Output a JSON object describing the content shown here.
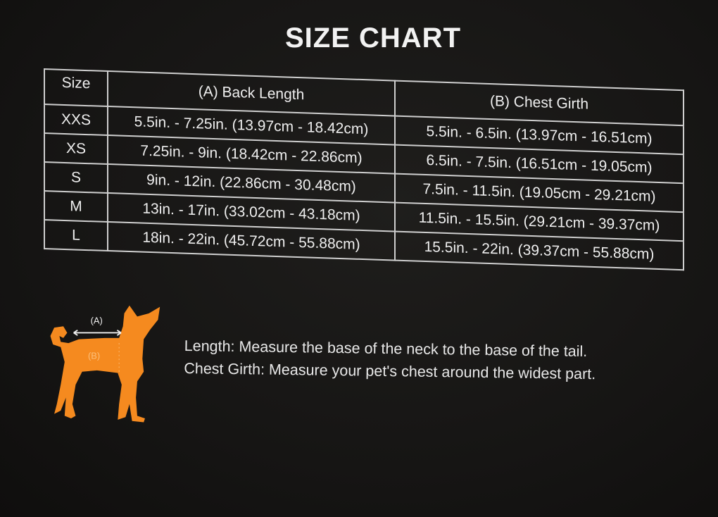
{
  "title": "SIZE CHART",
  "table": {
    "headers": [
      "Size",
      "(A) Back Length",
      "(B) Chest Girth"
    ],
    "rows": [
      [
        "XXS",
        "5.5in. - 7.25in. (13.97cm - 18.42cm)",
        "5.5in. - 6.5in. (13.97cm - 16.51cm)"
      ],
      [
        "XS",
        "7.25in. - 9in. (18.42cm - 22.86cm)",
        "6.5in. - 7.5in. (16.51cm - 19.05cm)"
      ],
      [
        "S",
        "9in. - 12in. (22.86cm - 30.48cm)",
        "7.5in. - 11.5in. (19.05cm - 29.21cm)"
      ],
      [
        "M",
        "13in. - 17in. (33.02cm - 43.18cm)",
        "11.5in. - 15.5in. (29.21cm - 39.37cm)"
      ],
      [
        "L",
        "18in. - 22in. (45.72cm - 55.88cm)",
        "15.5in. - 22in. (39.37cm - 55.88cm)"
      ]
    ]
  },
  "diagram": {
    "label_a": "(A)",
    "label_b": "(B)",
    "icon": "dog-silhouette-icon",
    "color": "#f58a1f"
  },
  "notes": [
    "Length: Measure the base of the neck to the base of the tail.",
    "Chest Girth: Measure your pet's chest around the widest part."
  ]
}
